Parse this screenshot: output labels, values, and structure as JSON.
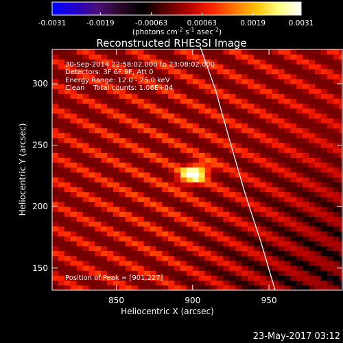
{
  "chart_data": {
    "type": "heatmap",
    "title": "Reconstructed RHESSI Image",
    "xlabel": "Heliocentric X (arcsec)",
    "ylabel": "Heliocentric Y (arcsec)",
    "xlim": [
      808,
      998
    ],
    "ylim": [
      132,
      328
    ],
    "x_ticks": [
      850,
      900,
      950
    ],
    "x_tick_labels": [
      "850",
      "900",
      "950"
    ],
    "y_ticks": [
      150,
      200,
      250,
      300
    ],
    "y_tick_labels": [
      "150",
      "200",
      "250",
      "300"
    ],
    "colorbar": {
      "range": [
        -0.0031,
        0.0031
      ],
      "ticks": [
        -0.0031,
        -0.0019,
        -0.00063,
        0.00063,
        0.0019,
        0.0031
      ],
      "tick_labels": [
        "-0.0031",
        "-0.0019",
        "-0.00063",
        "0.00063",
        "0.0019",
        "0.0031"
      ],
      "unit_label": "(photons cm",
      "unit_sup1": "-2",
      "unit_mid": " s",
      "unit_sup2": "-1",
      "unit_end": " asec",
      "unit_sup3": "-2",
      "unit_close": ")",
      "colors": [
        "#0000ff",
        "#2200cc",
        "#4b1078",
        "#2a0828",
        "#000000",
        "#5a0000",
        "#b00000",
        "#ff2000",
        "#ff7000",
        "#ffc000",
        "#ffff80",
        "#ffffff"
      ]
    },
    "peak": {
      "x": 901,
      "y": 227,
      "value": 0.0031
    },
    "annotations": [
      "30-Sep-2014 22:58:02.000 to 23:08:02.000",
      "Detectors: 3F 6F 9F, Att 0",
      "Energy Range: 12.0 - 25.0 keV",
      "Clean    Total counts: 1.06E+04",
      "Position of Peak = [901,227]"
    ],
    "limb_curve": [
      [
        954,
        132
      ],
      [
        945,
        170
      ],
      [
        934,
        212
      ],
      [
        924,
        255
      ],
      [
        915,
        295
      ],
      [
        905,
        330
      ]
    ],
    "timestamp": "23-May-2017 03:12"
  }
}
